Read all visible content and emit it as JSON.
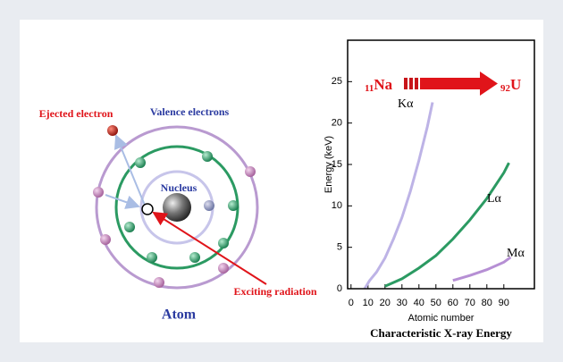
{
  "diagram": {
    "title": "Atom",
    "labels": {
      "ejected": "Ejected electron",
      "valence": "Valence electrons",
      "nucleus": "Nucleus",
      "radiation": "Exciting radiation"
    }
  },
  "chart_data": {
    "type": "line",
    "title": "Characteristic X-ray Energy",
    "x_label": "Atomic number",
    "y_label": "Energy  (keV)",
    "xlim": [
      -2,
      108
    ],
    "ylim": [
      0,
      30
    ],
    "xticks": [
      0,
      10,
      20,
      30,
      40,
      50,
      60,
      70,
      80,
      90
    ],
    "yticks": [
      0,
      5,
      10,
      15,
      20,
      25
    ],
    "annotations": {
      "start": {
        "sub": "11",
        "text": "Na"
      },
      "end": {
        "sub": "92",
        "text": "U"
      }
    },
    "series": [
      {
        "name": "Kα",
        "color": "#bdb3e6",
        "x": [
          8,
          11,
          15,
          20,
          25,
          30,
          35,
          40,
          45,
          48
        ],
        "values": [
          0,
          1.0,
          2.0,
          3.7,
          6.0,
          8.6,
          11.8,
          15.5,
          19.6,
          22.5
        ]
      },
      {
        "name": "Lα",
        "color": "#2b9a62",
        "x": [
          20,
          30,
          40,
          50,
          60,
          70,
          80,
          90,
          93
        ],
        "values": [
          0.3,
          1.2,
          2.5,
          4.0,
          6.0,
          8.3,
          10.9,
          14.0,
          15.2
        ]
      },
      {
        "name": "Mα",
        "color": "#b68fd4",
        "x": [
          60,
          70,
          80,
          90,
          94
        ],
        "values": [
          1.0,
          1.6,
          2.3,
          3.2,
          3.8
        ]
      }
    ]
  }
}
